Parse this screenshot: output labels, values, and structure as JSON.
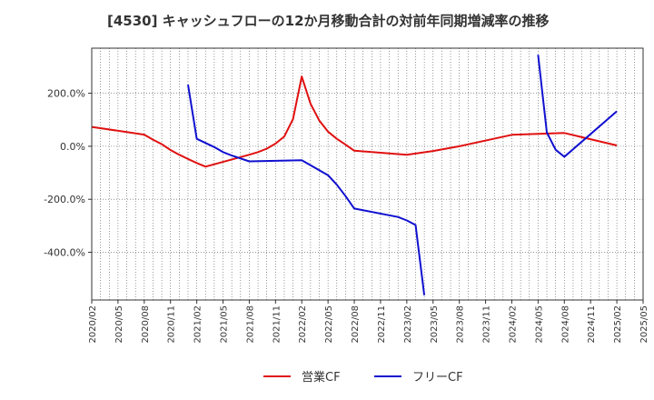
{
  "chart_data": {
    "type": "line",
    "title": "[4530]  キャッシュフローの12か月移動合計の対前年同期増減率の推移",
    "xlabel": "",
    "ylabel": "",
    "ylim": [
      -580,
      370
    ],
    "y_ticks": [
      {
        "value": 200,
        "label": "200.0%"
      },
      {
        "value": 0,
        "label": "0.0%"
      },
      {
        "value": -200,
        "label": "-200.0%"
      },
      {
        "value": -400,
        "label": "-400.0%"
      }
    ],
    "x_ticks": [
      "2020/02",
      "2020/05",
      "2020/08",
      "2020/11",
      "2021/02",
      "2021/05",
      "2021/08",
      "2021/11",
      "2022/02",
      "2022/05",
      "2022/08",
      "2022/11",
      "2023/02",
      "2023/05",
      "2023/08",
      "2023/11",
      "2024/02",
      "2024/05",
      "2024/08",
      "2024/11",
      "2025/02",
      "2025/05"
    ],
    "grid": true,
    "legend_position": "bottom-center",
    "series": [
      {
        "name": "営業CF",
        "color": "#e01010",
        "points": [
          [
            "2020/02",
            73
          ],
          [
            "2020/08",
            44
          ],
          [
            "2020/09",
            25
          ],
          [
            "2020/10",
            8
          ],
          [
            "2020/11",
            -14
          ],
          [
            "2020/12",
            -32
          ],
          [
            "2021/01",
            -48
          ],
          [
            "2021/02",
            -63
          ],
          [
            "2021/03",
            -77
          ],
          [
            "2021/08",
            -32
          ],
          [
            "2021/09",
            -22
          ],
          [
            "2021/10",
            -9
          ],
          [
            "2021/11",
            10
          ],
          [
            "2021/12",
            37
          ],
          [
            "2022/01",
            103
          ],
          [
            "2022/02",
            263
          ],
          [
            "2022/03",
            160
          ],
          [
            "2022/04",
            97
          ],
          [
            "2022/05",
            55
          ],
          [
            "2022/06",
            28
          ],
          [
            "2022/07",
            6
          ],
          [
            "2022/08",
            -17
          ],
          [
            "2023/02",
            -32
          ],
          [
            "2023/05",
            -18
          ],
          [
            "2023/08",
            0
          ],
          [
            "2024/02",
            43
          ],
          [
            "2024/08",
            50
          ],
          [
            "2025/02",
            3
          ]
        ]
      },
      {
        "name": "フリーCF",
        "color": "#1010d0",
        "segments": [
          [
            [
              "2021/01",
              232
            ],
            [
              "2021/02",
              28
            ],
            [
              "2021/04",
              -3
            ],
            [
              "2021/05",
              -22
            ],
            [
              "2021/06",
              -35
            ],
            [
              "2021/08",
              -57
            ],
            [
              "2022/02",
              -53
            ],
            [
              "2022/05",
              -109
            ],
            [
              "2022/06",
              -145
            ],
            [
              "2022/07",
              -188
            ],
            [
              "2022/08",
              -235
            ],
            [
              "2023/01",
              -267
            ],
            [
              "2023/02",
              -280
            ],
            [
              "2023/03",
              -297
            ],
            [
              "2023/04",
              -562
            ]
          ],
          [
            [
              "2024/05",
              345
            ],
            [
              "2024/06",
              52
            ],
            [
              "2024/07",
              -13
            ],
            [
              "2024/08",
              -40
            ],
            [
              "2025/02",
              132
            ]
          ]
        ]
      }
    ]
  }
}
